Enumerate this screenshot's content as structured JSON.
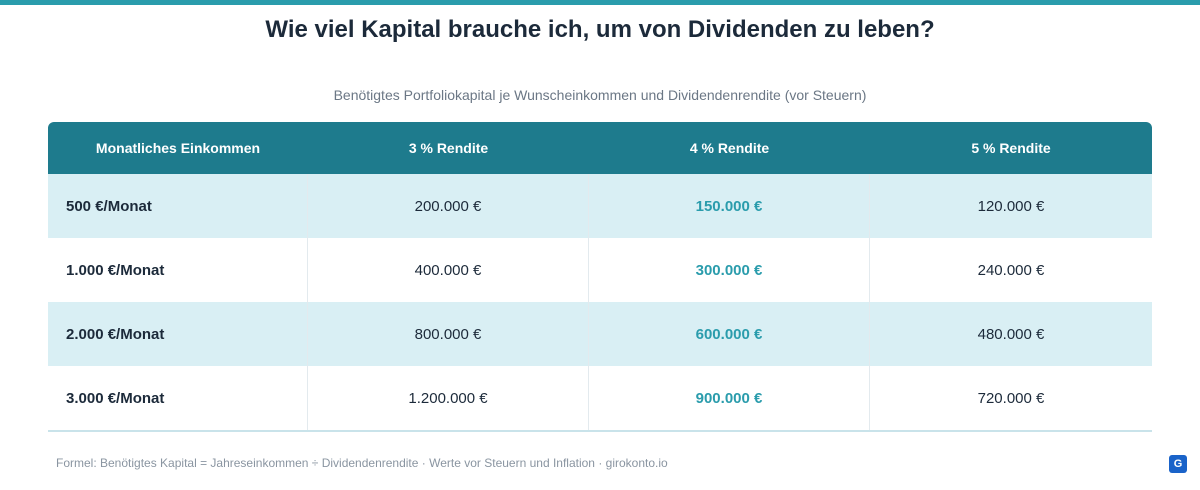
{
  "title": "Wie viel Kapital brauche ich, um von Dividenden zu leben?",
  "subtitle": "Benötigtes Portfoliokapital je Wunscheinkommen und Dividendenrendite (vor Steuern)",
  "table": {
    "headers": [
      "Monatliches Einkommen",
      "3 % Rendite",
      "4 % Rendite",
      "5 % Rendite"
    ],
    "rows": [
      [
        "500 €/Monat",
        "200.000 €",
        "150.000 €",
        "120.000 €"
      ],
      [
        "1.000 €/Monat",
        "400.000 €",
        "300.000 €",
        "240.000 €"
      ],
      [
        "2.000 €/Monat",
        "800.000 €",
        "600.000 €",
        "480.000 €"
      ],
      [
        "3.000 €/Monat",
        "1.200.000 €",
        "900.000 €",
        "720.000 €"
      ]
    ]
  },
  "footnote": "Formel: Benötigtes Kapital = Jahreseinkommen ÷ Dividendenrendite · Werte vor Steuern und Inflation · girokonto.io",
  "logo": {
    "text": "G"
  },
  "colors": {
    "accent": "#2a9cac",
    "header_bg": "#1e7b8d",
    "alt_row": "#d9eff4"
  }
}
